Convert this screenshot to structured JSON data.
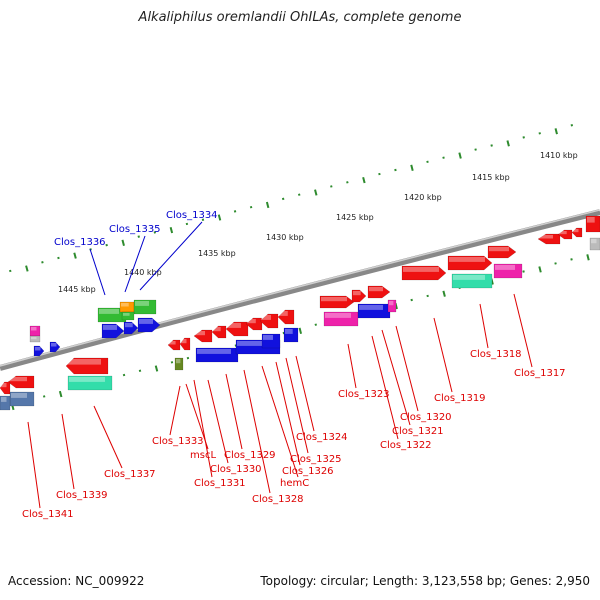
{
  "title": "Alkaliphilus oremlandii OhILAs, complete genome",
  "footer": {
    "accession": "Accession: NC_009922",
    "summary": "Topology: circular; Length: 3,123,558 bp; Genes: 2,950"
  },
  "scale_labels": [
    "1410 kbp",
    "1415 kbp",
    "1420 kbp",
    "1425 kbp",
    "1430 kbp",
    "1435 kbp",
    "1440 kbp",
    "1445 kbp"
  ],
  "gene_labels": {
    "top": [
      "Clos_1336",
      "Clos_1335",
      "Clos_1334"
    ],
    "bottom": [
      "Clos_1341",
      "Clos_1339",
      "Clos_1337",
      "Clos_1333",
      "mscL",
      "Clos_1331",
      "Clos_1330",
      "Clos_1329",
      "Clos_1328",
      "hemC",
      "Clos_1326",
      "Clos_1325",
      "Clos_1324",
      "Clos_1323",
      "Clos_1322",
      "Clos_1321",
      "Clos_1320",
      "Clos_1319",
      "Clos_1318",
      "Clos_1317"
    ]
  },
  "colors": {
    "backbone": "#888888",
    "ticks": "#2e8b2e",
    "label_blue": "#0000cc",
    "label_red": "#dd0000",
    "red": "#ee1111",
    "blue": "#1111dd",
    "green": "#33bb33",
    "teal": "#33ddaa",
    "magenta": "#ee22aa",
    "orange": "#ff9900",
    "steel": "#5577aa",
    "olive": "#668822"
  }
}
